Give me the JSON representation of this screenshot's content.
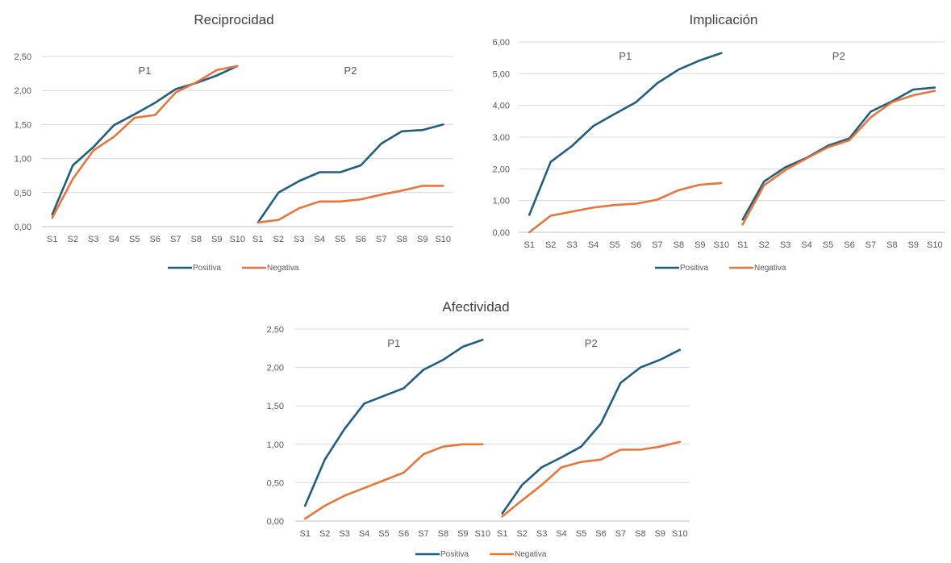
{
  "colors": {
    "positiva": "#1f5f7f",
    "negativa": "#e8763a",
    "grid": "#d9d9d9"
  },
  "chart_data": [
    {
      "id": "reciprocidad",
      "type": "line",
      "title": "Reciprocidad",
      "groups": [
        "P1",
        "P2"
      ],
      "categories": [
        "S1",
        "S2",
        "S3",
        "S4",
        "S5",
        "S6",
        "S7",
        "S8",
        "S9",
        "S10"
      ],
      "yticks": [
        "0,00",
        "0,50",
        "1,00",
        "1,50",
        "2,00",
        "2,50"
      ],
      "ylim": [
        0,
        2.5
      ],
      "grid": true,
      "legend_position": "bottom",
      "series": [
        {
          "name": "Positiva",
          "values": {
            "P1": [
              0.18,
              0.9,
              1.17,
              1.49,
              1.65,
              1.82,
              2.02,
              2.11,
              2.22,
              2.36
            ],
            "P2": [
              0.06,
              0.5,
              0.67,
              0.8,
              0.8,
              0.9,
              1.22,
              1.4,
              1.42,
              1.5
            ]
          }
        },
        {
          "name": "Negativa",
          "values": {
            "P1": [
              0.13,
              0.7,
              1.12,
              1.32,
              1.6,
              1.64,
              1.97,
              2.12,
              2.3,
              2.36
            ],
            "P2": [
              0.06,
              0.1,
              0.27,
              0.37,
              0.37,
              0.4,
              0.47,
              0.53,
              0.6,
              0.6
            ]
          }
        }
      ]
    },
    {
      "id": "implicacion",
      "type": "line",
      "title": "Implicación",
      "groups": [
        "P1",
        "P2"
      ],
      "categories": [
        "S1",
        "S2",
        "S3",
        "S4",
        "S5",
        "S6",
        "S7",
        "S8",
        "S9",
        "S10"
      ],
      "yticks": [
        "0,00",
        "1,00",
        "2,00",
        "3,00",
        "4,00",
        "5,00",
        "6,00"
      ],
      "ylim": [
        0,
        6
      ],
      "grid": true,
      "legend_position": "bottom",
      "series": [
        {
          "name": "Positiva",
          "values": {
            "P1": [
              0.55,
              2.22,
              2.72,
              3.35,
              3.73,
              4.1,
              4.7,
              5.13,
              5.42,
              5.65
            ],
            "P2": [
              0.4,
              1.6,
              2.05,
              2.35,
              2.73,
              2.96,
              3.8,
              4.13,
              4.5,
              4.56
            ]
          }
        },
        {
          "name": "Negativa",
          "values": {
            "P1": [
              0.0,
              0.52,
              0.65,
              0.78,
              0.86,
              0.9,
              1.03,
              1.33,
              1.5,
              1.55
            ],
            "P2": [
              0.25,
              1.48,
              1.96,
              2.33,
              2.68,
              2.9,
              3.62,
              4.1,
              4.32,
              4.46
            ]
          }
        }
      ]
    },
    {
      "id": "afectividad",
      "type": "line",
      "title": "Afectividad",
      "groups": [
        "P1",
        "P2"
      ],
      "categories": [
        "S1",
        "S2",
        "S3",
        "S4",
        "S5",
        "S6",
        "S7",
        "S8",
        "S9",
        "S10"
      ],
      "yticks": [
        "0,00",
        "0,50",
        "1,00",
        "1,50",
        "2,00",
        "2,50"
      ],
      "ylim": [
        0,
        2.5
      ],
      "grid": true,
      "legend_position": "bottom",
      "series": [
        {
          "name": "Positiva",
          "values": {
            "P1": [
              0.2,
              0.8,
              1.2,
              1.53,
              1.63,
              1.73,
              1.97,
              2.1,
              2.27,
              2.36
            ],
            "P2": [
              0.1,
              0.47,
              0.7,
              0.83,
              0.97,
              1.27,
              1.8,
              2.0,
              2.1,
              2.23
            ]
          }
        },
        {
          "name": "Negativa",
          "values": {
            "P1": [
              0.03,
              0.2,
              0.33,
              0.43,
              0.53,
              0.63,
              0.87,
              0.97,
              1.0,
              1.0
            ],
            "P2": [
              0.06,
              0.27,
              0.47,
              0.7,
              0.77,
              0.8,
              0.93,
              0.93,
              0.97,
              1.03
            ]
          }
        }
      ]
    }
  ]
}
